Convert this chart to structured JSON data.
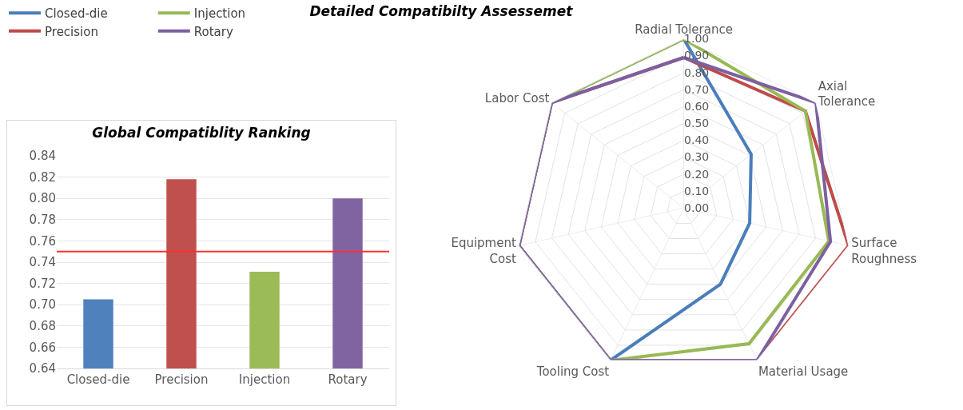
{
  "chart_data": [
    {
      "type": "bar",
      "title": "Global Compatiblity Ranking",
      "categories": [
        "Closed-die",
        "Precision",
        "Injection",
        "Rotary"
      ],
      "values": [
        0.705,
        0.818,
        0.731,
        0.8
      ],
      "colors": [
        "#4f81bd",
        "#c0504d",
        "#9bbb59",
        "#8064a2"
      ],
      "ylim": [
        0.64,
        0.84
      ],
      "yticks": [
        0.64,
        0.66,
        0.68,
        {
          "value": 0.7,
          "label": "0.70"
        },
        0.72,
        0.74,
        0.76,
        0.78,
        {
          "value": 0.8,
          "label": "0.80"
        },
        0.82,
        0.84
      ],
      "grid": "y",
      "ref_lines": [
        {
          "axis": "y",
          "value": 0.75,
          "color": "#ff3030"
        }
      ]
    },
    {
      "type": "radar",
      "title": "Detailed Compatibilty Assessemet",
      "categories": [
        "Radial Tolerance",
        "Axial Tolerance",
        "Surface Roughness",
        "Material Usage",
        "Tooling Cost",
        "Equipment Cost",
        "Labor Cost"
      ],
      "series": [
        {
          "name": "Closed-die",
          "color": "#4a7ebb",
          "values": [
            1.0,
            0.51,
            0.4,
            0.5,
            1.0,
            1.0,
            1.0
          ]
        },
        {
          "name": "Precision",
          "color": "#be4b48",
          "values": [
            0.89,
            0.92,
            1.0,
            1.0,
            1.0,
            1.0,
            1.0
          ]
        },
        {
          "name": "Injection",
          "color": "#98b954",
          "values": [
            1.0,
            0.92,
            0.88,
            0.89,
            1.0,
            1.0,
            1.0
          ]
        },
        {
          "name": "Rotary",
          "color": "#7d60a0",
          "values": [
            0.89,
            1.0,
            0.89,
            1.0,
            1.0,
            1.0,
            1.0
          ]
        }
      ],
      "ylim": [
        0,
        1
      ],
      "yticks": [
        {
          "value": 0,
          "label": "0.00"
        },
        {
          "value": 0.1,
          "label": "0.10"
        },
        {
          "value": 0.2,
          "label": "0.20"
        },
        {
          "value": 0.3,
          "label": "0.30"
        },
        {
          "value": 0.4,
          "label": "0.40"
        },
        {
          "value": 0.5,
          "label": "0.50"
        },
        {
          "value": 0.6,
          "label": "0.60"
        },
        {
          "value": 0.7,
          "label": "0.70"
        },
        {
          "value": 0.8,
          "label": "0.80"
        },
        {
          "value": 0.9,
          "label": "0.90"
        },
        {
          "value": 1,
          "label": "1.00"
        }
      ],
      "grid": true,
      "legend": "top left"
    }
  ]
}
